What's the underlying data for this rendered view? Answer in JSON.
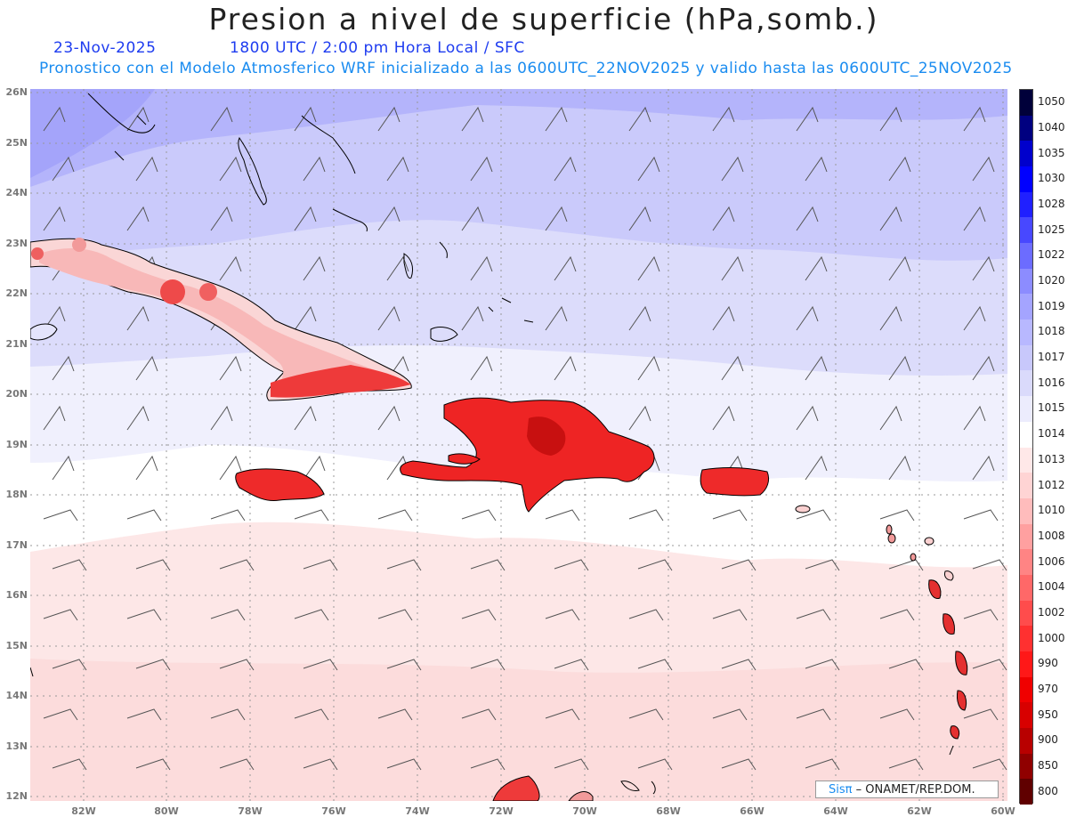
{
  "header": {
    "title": "Presion a nivel de superficie (hPa,somb.)",
    "date": "23-Nov-2025",
    "time_line": "1800 UTC / 2:00 pm Hora Local / SFC",
    "forecast_line": "Pronostico con el Modelo Atmosferico WRF inicializado a las 0600UTC_22NOV2025 y valido hasta las  0600UTC_25NOV2025"
  },
  "axes": {
    "lat_labels": [
      "26N",
      "25N",
      "24N",
      "23N",
      "22N",
      "21N",
      "20N",
      "19N",
      "18N",
      "17N",
      "16N",
      "15N",
      "14N",
      "13N",
      "12N"
    ],
    "lon_labels": [
      "82W",
      "80W",
      "78W",
      "76W",
      "74W",
      "72W",
      "70W",
      "68W",
      "66W",
      "64W",
      "62W",
      "60W"
    ],
    "lat_range": [
      12,
      26
    ],
    "lon_range": [
      -83.2,
      -60.0
    ]
  },
  "colorbar": {
    "levels": [
      "1050",
      "1040",
      "1035",
      "1030",
      "1028",
      "1025",
      "1022",
      "1020",
      "1019",
      "1018",
      "1017",
      "1016",
      "1015",
      "1014",
      "1013",
      "1012",
      "1010",
      "1008",
      "1006",
      "1004",
      "1002",
      "1000",
      "990",
      "970",
      "950",
      "900",
      "850",
      "800"
    ],
    "colors": [
      "#00003a",
      "#000080",
      "#0000cc",
      "#0000ff",
      "#2020ff",
      "#4848ff",
      "#6c6cff",
      "#8c8cff",
      "#a4a4ff",
      "#b8b8ff",
      "#c8c8fb",
      "#dadafb",
      "#ececfd",
      "#ffffff",
      "#ffe8e8",
      "#ffd4d4",
      "#ffbcbc",
      "#ffa0a0",
      "#ff8484",
      "#ff6868",
      "#ff4c4c",
      "#ff3030",
      "#ff1818",
      "#f00000",
      "#d80000",
      "#b80000",
      "#900000",
      "#600000"
    ]
  },
  "credit": {
    "brand": "Sisπ",
    "text": "– ONAMET/REP.DOM."
  }
}
